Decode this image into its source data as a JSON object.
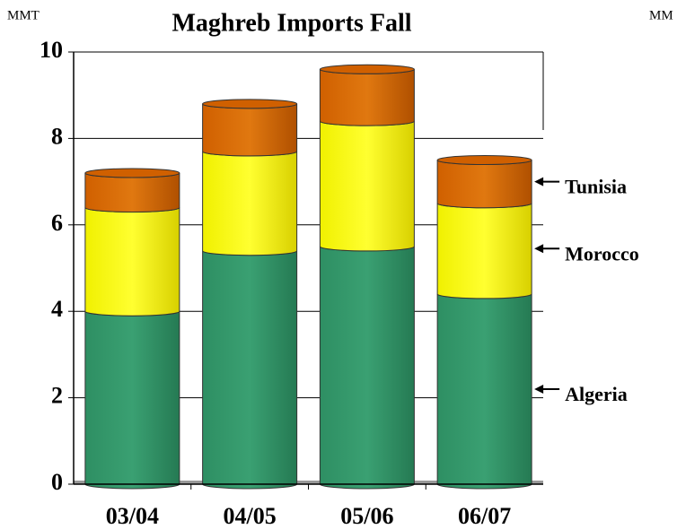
{
  "chart_data": {
    "type": "stacked_bar",
    "title": "Maghreb Imports Fall",
    "unit": "MMT",
    "unit_right": "MM",
    "categories": [
      "03/04",
      "04/05",
      "05/06",
      "06/07"
    ],
    "series": [
      {
        "name": "Algeria",
        "color": "#2e8f63",
        "values": [
          4.0,
          5.4,
          5.5,
          4.4
        ]
      },
      {
        "name": "Morocco",
        "color": "#ffff00",
        "values": [
          2.4,
          2.3,
          2.9,
          2.1
        ]
      },
      {
        "name": "Tunisia",
        "color": "#d06000",
        "values": [
          0.8,
          1.1,
          1.2,
          1.0
        ]
      }
    ],
    "ylim": [
      0,
      10
    ],
    "yticks": [
      0,
      2,
      4,
      6,
      8,
      10
    ],
    "grid": true
  }
}
